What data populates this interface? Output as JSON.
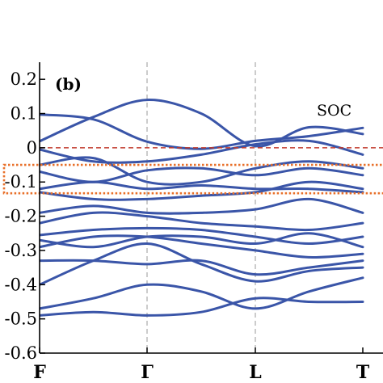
{
  "chart_data": {
    "type": "line",
    "title": "",
    "panel_label": "(b)",
    "annotation": "SOC",
    "xlabel": "",
    "ylabel": "",
    "x_ticks": [
      "F",
      "Γ",
      "L",
      "T"
    ],
    "x_range": [
      0,
      3
    ],
    "ylim": [
      -0.6,
      0.25
    ],
    "y_ticks": [
      {
        "value": 0.2,
        "label": "0.2"
      },
      {
        "value": 0.1,
        "label": "0.1"
      },
      {
        "value": 0.0,
        "label": "0"
      },
      {
        "value": -0.1,
        "label": "-0.1"
      },
      {
        "value": -0.2,
        "label": "-0.2"
      },
      {
        "value": -0.3,
        "label": "-0.3"
      },
      {
        "value": -0.4,
        "label": "-0.4"
      },
      {
        "value": -0.5,
        "label": "-0.5"
      },
      {
        "value": -0.6,
        "label": "-0.6"
      }
    ],
    "fermi_level": 0.0,
    "highlight_window": [
      -0.133,
      -0.05
    ],
    "band_color": "#3a55a8",
    "fermi_color": "#c0392b",
    "highlight_color": "#e8702a",
    "vline_color": "#9a9a9a",
    "bands": [
      [
        [
          0,
          0.097
        ],
        [
          0.5,
          0.083
        ],
        [
          1,
          0.018
        ],
        [
          1.5,
          -0.003
        ],
        [
          2,
          0.02
        ],
        [
          2.5,
          0.034
        ],
        [
          3,
          0.058
        ]
      ],
      [
        [
          0,
          0.019
        ],
        [
          0.5,
          0.09
        ],
        [
          1,
          0.14
        ],
        [
          1.5,
          0.1
        ],
        [
          2,
          0.005
        ],
        [
          2.5,
          0.06
        ],
        [
          3,
          0.04
        ]
      ],
      [
        [
          0,
          -0.005
        ],
        [
          0.5,
          -0.04
        ],
        [
          1,
          -0.04
        ],
        [
          1.5,
          -0.02
        ],
        [
          2,
          0.01
        ],
        [
          2.5,
          0.02
        ],
        [
          3,
          -0.02
        ]
      ],
      [
        [
          0,
          -0.05
        ],
        [
          0.5,
          -0.03
        ],
        [
          1,
          -0.1
        ],
        [
          1.5,
          -0.1
        ],
        [
          2,
          -0.06
        ],
        [
          2.5,
          -0.04
        ],
        [
          3,
          -0.06
        ]
      ],
      [
        [
          0,
          -0.07
        ],
        [
          0.5,
          -0.1
        ],
        [
          1,
          -0.066
        ],
        [
          1.5,
          -0.06
        ],
        [
          2,
          -0.08
        ],
        [
          2.5,
          -0.06
        ],
        [
          3,
          -0.08
        ]
      ],
      [
        [
          0,
          -0.12
        ],
        [
          0.5,
          -0.1
        ],
        [
          1,
          -0.12
        ],
        [
          1.5,
          -0.11
        ],
        [
          2,
          -0.12
        ],
        [
          2.5,
          -0.12
        ],
        [
          3,
          -0.13
        ]
      ],
      [
        [
          0,
          -0.13
        ],
        [
          0.5,
          -0.15
        ],
        [
          1,
          -0.15
        ],
        [
          1.5,
          -0.14
        ],
        [
          2,
          -0.13
        ],
        [
          2.5,
          -0.1
        ],
        [
          3,
          -0.12
        ]
      ],
      [
        [
          0,
          -0.19
        ],
        [
          0.5,
          -0.17
        ],
        [
          1,
          -0.19
        ],
        [
          1.5,
          -0.19
        ],
        [
          2,
          -0.18
        ],
        [
          2.5,
          -0.15
        ],
        [
          3,
          -0.19
        ]
      ],
      [
        [
          0,
          -0.22
        ],
        [
          0.5,
          -0.19
        ],
        [
          1,
          -0.2
        ],
        [
          1.5,
          -0.22
        ],
        [
          2,
          -0.23
        ],
        [
          2.5,
          -0.24
        ],
        [
          3,
          -0.22
        ]
      ],
      [
        [
          0,
          -0.255
        ],
        [
          0.5,
          -0.24
        ],
        [
          1,
          -0.235
        ],
        [
          1.5,
          -0.24
        ],
        [
          2,
          -0.26
        ],
        [
          2.5,
          -0.28
        ],
        [
          3,
          -0.26
        ]
      ],
      [
        [
          0,
          -0.27
        ],
        [
          0.5,
          -0.29
        ],
        [
          1,
          -0.26
        ],
        [
          1.5,
          -0.26
        ],
        [
          2,
          -0.28
        ],
        [
          2.5,
          -0.25
        ],
        [
          3,
          -0.29
        ]
      ],
      [
        [
          0,
          -0.29
        ],
        [
          0.5,
          -0.26
        ],
        [
          1,
          -0.26
        ],
        [
          1.5,
          -0.28
        ],
        [
          2,
          -0.3
        ],
        [
          2.5,
          -0.32
        ],
        [
          3,
          -0.31
        ]
      ],
      [
        [
          0,
          -0.33
        ],
        [
          0.5,
          -0.33
        ],
        [
          1,
          -0.34
        ],
        [
          1.5,
          -0.33
        ],
        [
          2,
          -0.37
        ],
        [
          2.5,
          -0.35
        ],
        [
          3,
          -0.33
        ]
      ],
      [
        [
          0,
          -0.4
        ],
        [
          0.5,
          -0.33
        ],
        [
          1,
          -0.28
        ],
        [
          1.5,
          -0.34
        ],
        [
          2,
          -0.39
        ],
        [
          2.5,
          -0.36
        ],
        [
          3,
          -0.35
        ]
      ],
      [
        [
          0,
          -0.47
        ],
        [
          0.5,
          -0.44
        ],
        [
          1,
          -0.4
        ],
        [
          1.5,
          -0.42
        ],
        [
          2,
          -0.47
        ],
        [
          2.5,
          -0.42
        ],
        [
          3,
          -0.38
        ]
      ],
      [
        [
          0,
          -0.49
        ],
        [
          0.5,
          -0.48
        ],
        [
          1,
          -0.49
        ],
        [
          1.5,
          -0.48
        ],
        [
          2,
          -0.44
        ],
        [
          2.5,
          -0.45
        ],
        [
          3,
          -0.45
        ]
      ]
    ]
  }
}
